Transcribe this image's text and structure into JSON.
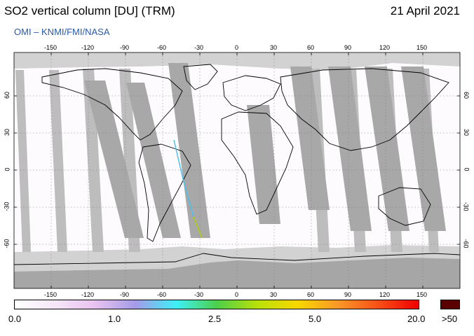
{
  "title": "SO2 vertical column [DU] (TRM)",
  "date": "21 April 2021",
  "source": "OMI  –  KNMI/FMI/NASA",
  "lon_ticks": [
    "-150",
    "-120",
    "-90",
    "-60",
    "-30",
    "0",
    "30",
    "60",
    "90",
    "120",
    "150"
  ],
  "lat_ticks": [
    "60",
    "30",
    "0",
    "-30",
    "-60"
  ],
  "scale": {
    "labels": [
      "0.0",
      "1.0",
      "2.5",
      "5.0",
      "20.0"
    ],
    "over_label": ">50",
    "over_color": "#5a0000",
    "colors": [
      "#ffffff",
      "#f6e6f8",
      "#e8c2f0",
      "#a49be8",
      "#3ef0f8",
      "#4cd04a",
      "#b8e00a",
      "#f8d800",
      "#f89828",
      "#f85018",
      "#f00000"
    ]
  },
  "colors": {
    "ocean": "#ffffff",
    "land_outline": "#000000",
    "orbit_gap": "#a8a8a8",
    "no_data": "#d2d2d2",
    "background_band": "#ffffff"
  }
}
